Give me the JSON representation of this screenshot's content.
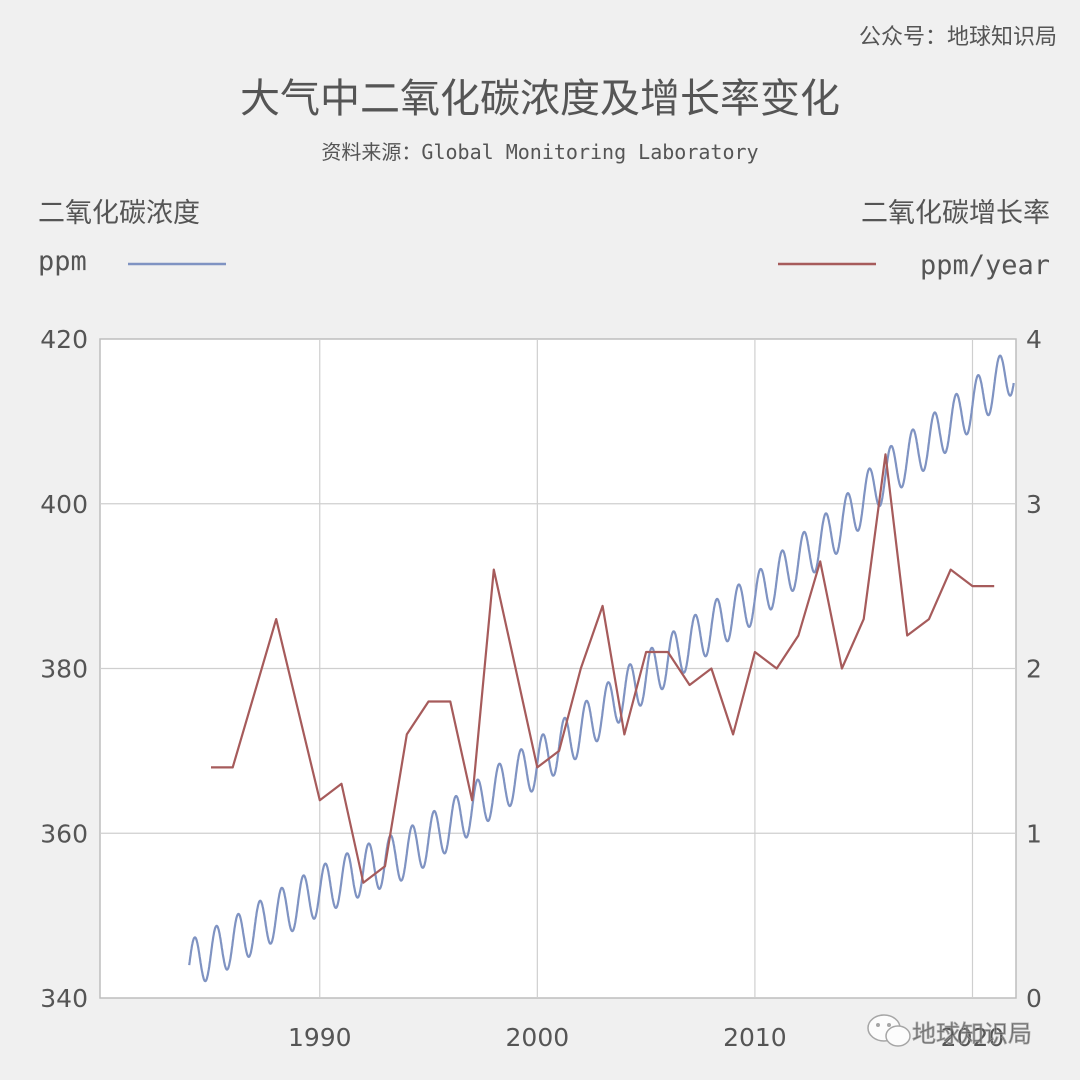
{
  "header": {
    "source_tag": "公众号：地球知识局",
    "title": "大气中二氧化碳浓度及增长率变化",
    "subtitle": "资料来源：Global Monitoring Laboratory"
  },
  "watermark": {
    "text": "地球知识局",
    "icon": "wechat-icon"
  },
  "chart_data": {
    "type": "line",
    "title": "大气中二氧化碳浓度及增长率变化",
    "subtitle": "资料来源：Global Monitoring Laboratory",
    "x_range": [
      1979.9,
      2022.0
    ],
    "x_ticks": [
      1990,
      2000,
      2010,
      2020
    ],
    "grid": true,
    "left_axis": {
      "label_line1": "二氧化碳浓度",
      "label_line2": "ppm",
      "range": [
        340,
        420
      ],
      "ticks": [
        340,
        360,
        380,
        400,
        420
      ]
    },
    "right_axis": {
      "label_line1": "二氧化碳增长率",
      "label_line2": "ppm/year",
      "range": [
        0,
        4
      ],
      "ticks": [
        0,
        1,
        2,
        3,
        4
      ]
    },
    "series": [
      {
        "axis": "left",
        "color": "#7f93c2",
        "seasonal_amplitude": 3.0,
        "trend": [
          [
            1984.0,
            344.0
          ],
          [
            1986.0,
            346.8
          ],
          [
            1988.0,
            350.0
          ],
          [
            1990.0,
            353.0
          ],
          [
            1992.0,
            355.5
          ],
          [
            1994.0,
            357.5
          ],
          [
            1996.0,
            361.0
          ],
          [
            1998.0,
            365.0
          ],
          [
            2000.0,
            368.5
          ],
          [
            2002.0,
            372.5
          ],
          [
            2004.0,
            377.0
          ],
          [
            2006.0,
            381.0
          ],
          [
            2008.0,
            385.0
          ],
          [
            2010.0,
            388.5
          ],
          [
            2012.0,
            393.0
          ],
          [
            2014.0,
            397.5
          ],
          [
            2016.0,
            403.5
          ],
          [
            2018.0,
            407.5
          ],
          [
            2020.0,
            412.0
          ],
          [
            2021.9,
            416.5
          ]
        ]
      },
      {
        "axis": "right",
        "color": "#a65b5b",
        "x": [
          1985,
          1986,
          1987,
          1988,
          1989,
          1990,
          1991,
          1992,
          1993,
          1994,
          1995,
          1996,
          1997,
          1998,
          1999,
          2000,
          2001,
          2002,
          2003,
          2004,
          2005,
          2006,
          2007,
          2008,
          2009,
          2010,
          2011,
          2012,
          2013,
          2014,
          2015,
          2016,
          2017,
          2018,
          2019,
          2020,
          2021
        ],
        "values": [
          1.4,
          1.4,
          1.85,
          2.3,
          1.75,
          1.2,
          1.3,
          0.7,
          0.8,
          1.6,
          1.8,
          1.8,
          1.2,
          2.6,
          2.0,
          1.4,
          1.5,
          2.0,
          2.38,
          1.6,
          2.1,
          2.1,
          1.9,
          2.0,
          1.6,
          2.1,
          2.0,
          2.2,
          2.65,
          2.0,
          2.3,
          3.3,
          2.2,
          2.3,
          2.6,
          2.5,
          2.5
        ]
      }
    ]
  }
}
